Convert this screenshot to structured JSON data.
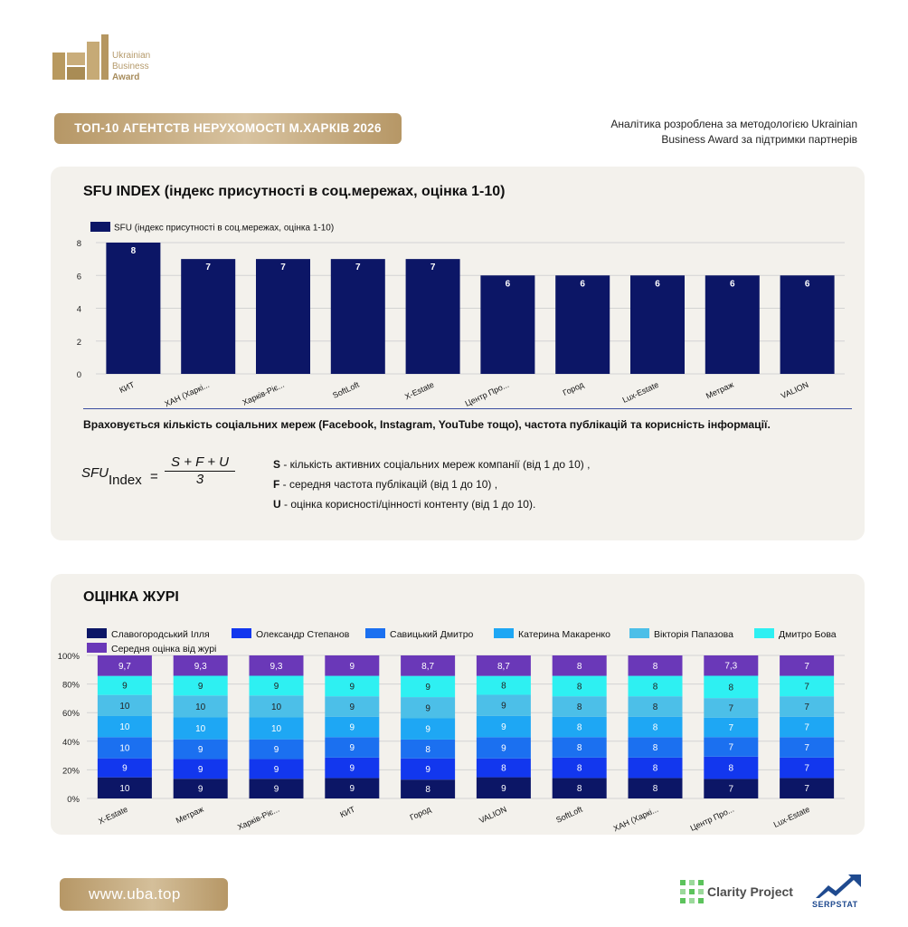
{
  "brand": {
    "logo_lines": [
      "Ukrainian",
      "Business",
      "Award"
    ]
  },
  "header": {
    "title": "ТОП-10 АГЕНТСТВ НЕРУХОМОСТІ М.ХАРКІВ 2026",
    "note_line1": "Аналітика розроблена за методологією Ukrainian",
    "note_line2": "Business Award за підтримки партнерів"
  },
  "sfu_panel": {
    "title": "SFU INDEX (індекс присутності в соц.мережах, оцінка 1-10)",
    "note": "Враховується кількість соціальних мереж (Facebook, Instagram, YouTube тощо), частота публікацій та корисність інформації.",
    "formula": {
      "lhs": "SFU",
      "sub": "Index",
      "eq": "=",
      "numerator": "S + F + U",
      "denominator": "3"
    },
    "definitions": [
      {
        "key": "S",
        "text": " - кількість активних соціальних мереж компанії (від 1 до 10) ,"
      },
      {
        "key": "F",
        "text": " - середня частота публікацій (від 1 до 10) ,"
      },
      {
        "key": "U",
        "text": " - оцінка корисності/цінності контенту (від 1 до 10)."
      }
    ]
  },
  "jury_panel": {
    "title": "ОЦІНКА ЖУРІ"
  },
  "footer": {
    "url": "www.uba.top",
    "partner1": "Clarity Project",
    "partner2": "SERPSTAT"
  },
  "chart_data": [
    {
      "type": "bar",
      "title": "",
      "categories": [
        "КИТ",
        "ХАН (Харкі...",
        "Харків-Ріє...",
        "SoftLoft",
        "X-Estate",
        "Центр Про...",
        "Город",
        "Lux-Estate",
        "Метраж",
        "VALION"
      ],
      "series": [
        {
          "name": "SFU (індекс присутності в соц.мережах, оцінка 1-10)",
          "values": [
            8,
            7,
            7,
            7,
            7,
            6,
            6,
            6,
            6,
            6
          ]
        }
      ],
      "ylim": [
        0,
        8
      ],
      "yticks": [
        0,
        2,
        4,
        6,
        8
      ],
      "grid": true,
      "legend": "top-left",
      "colors": {
        "bar": "#0c1666"
      }
    },
    {
      "type": "bar",
      "stacked_percent": true,
      "title": "",
      "categories": [
        "X-Estate",
        "Метраж",
        "Харків-Ріє...",
        "КИТ",
        "Город",
        "VALION",
        "SoftLoft",
        "ХАН (Харкі...",
        "Центр Про...",
        "Lux-Estate"
      ],
      "series": [
        {
          "name": "Славогородський Ілля",
          "color": "#0c1666",
          "values": [
            10,
            9,
            9,
            9,
            8,
            9,
            8,
            8,
            7,
            7
          ]
        },
        {
          "name": "Олександр Степанов",
          "color": "#1237ee",
          "values": [
            9,
            9,
            9,
            9,
            9,
            8,
            8,
            8,
            8,
            7
          ]
        },
        {
          "name": "Савицький Дмитро",
          "color": "#1b70f0",
          "values": [
            10,
            9,
            9,
            9,
            8,
            9,
            8,
            8,
            7,
            7
          ]
        },
        {
          "name": "Катерина Макаренко",
          "color": "#1ea7f4",
          "values": [
            10,
            10,
            10,
            9,
            9,
            9,
            8,
            8,
            7,
            7
          ]
        },
        {
          "name": "Вікторія Папазова",
          "color": "#4cbfe8",
          "values": [
            10,
            10,
            10,
            9,
            9,
            9,
            8,
            8,
            7,
            7
          ]
        },
        {
          "name": "Дмитро Бова",
          "color": "#2ef0f2",
          "values": [
            9,
            9,
            9,
            9,
            9,
            8,
            8,
            8,
            8,
            7
          ]
        },
        {
          "name": "Середня оцінка від журі",
          "color": "#6a38b8",
          "values": [
            9.7,
            9.3,
            9.3,
            9,
            8.7,
            8.7,
            8,
            8,
            7.3,
            7
          ]
        }
      ],
      "value_labels": [
        [
          "10",
          "9",
          "9",
          "9",
          "8",
          "9",
          "8",
          "8",
          "7",
          "7"
        ],
        [
          "9",
          "9",
          "9",
          "9",
          "9",
          "8",
          "8",
          "8",
          "8",
          "7"
        ],
        [
          "10",
          "9",
          "9",
          "9",
          "8",
          "9",
          "8",
          "8",
          "7",
          "7"
        ],
        [
          "10",
          "10",
          "10",
          "9",
          "9",
          "9",
          "8",
          "8",
          "7",
          "7"
        ],
        [
          "10",
          "10",
          "10",
          "9",
          "9",
          "9",
          "8",
          "8",
          "7",
          "7"
        ],
        [
          "9",
          "9",
          "9",
          "9",
          "9",
          "8",
          "8",
          "8",
          "8",
          "7"
        ],
        [
          "9,7",
          "9,3",
          "9,3",
          "9",
          "8,7",
          "8,7",
          "8",
          "8",
          "7,3",
          "7"
        ]
      ],
      "yticks": [
        "0%",
        "20%",
        "40%",
        "60%",
        "80%",
        "100%"
      ],
      "ylim": [
        0,
        100
      ],
      "grid": true,
      "legend": "top"
    }
  ]
}
